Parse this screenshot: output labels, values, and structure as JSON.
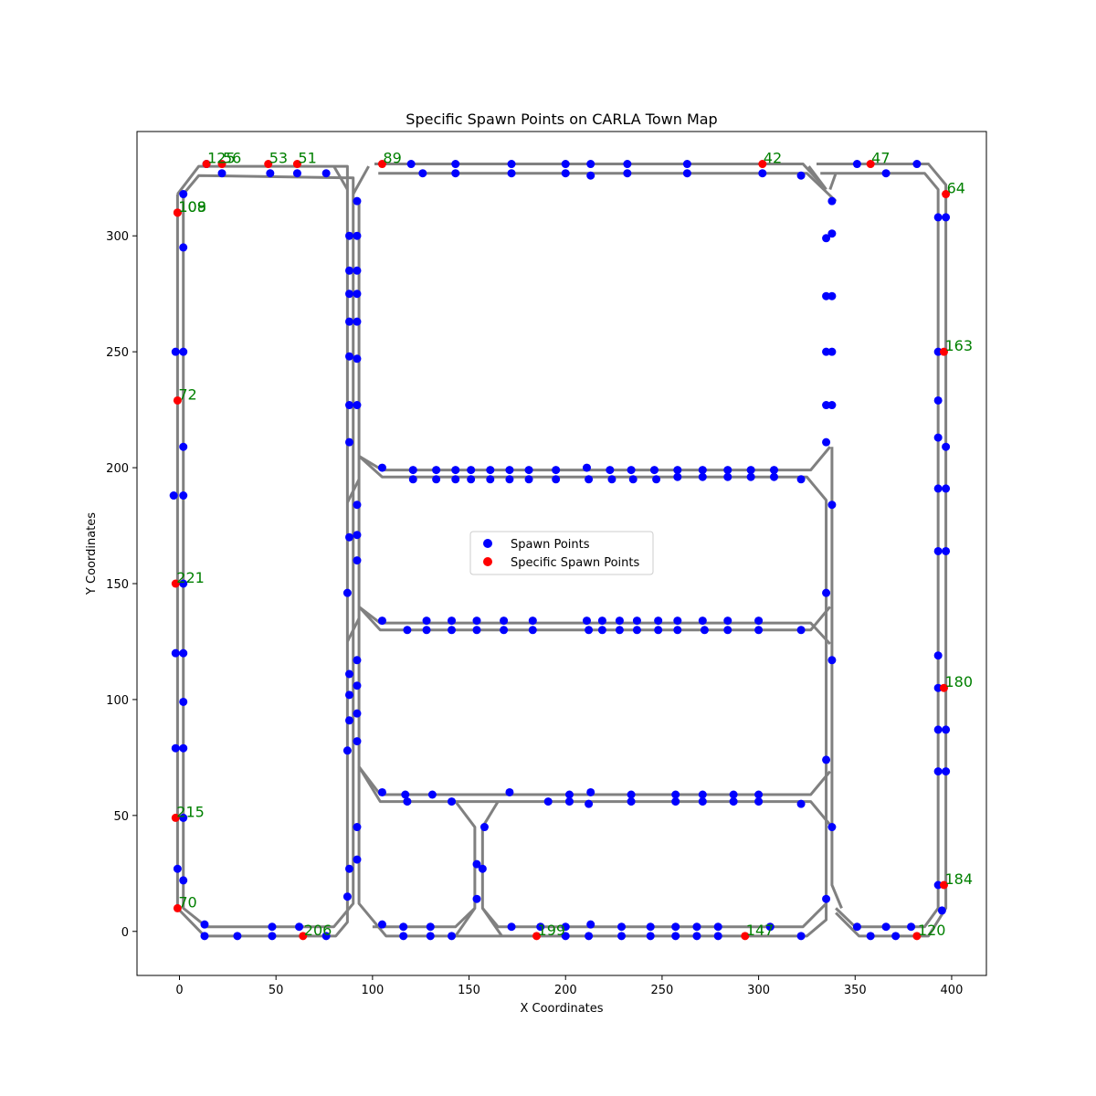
{
  "chart_data": {
    "type": "scatter",
    "title": "Specific Spawn Points on CARLA Town Map",
    "xlabel": "X Coordinates",
    "ylabel": "Y Coordinates",
    "xlim": [
      -22,
      418
    ],
    "ylim": [
      -19,
      345
    ],
    "xticks": [
      0,
      50,
      100,
      150,
      200,
      250,
      300,
      350,
      400
    ],
    "yticks": [
      0,
      50,
      100,
      150,
      200,
      250,
      300
    ],
    "grid": false,
    "legend": {
      "placement": "center",
      "entries": [
        {
          "label": "Spawn Points",
          "color": "#0000ff"
        },
        {
          "label": "Specific Spawn Points",
          "color": "#ff0000"
        }
      ]
    },
    "colors": {
      "road": "#808080",
      "spawn": "#0000ff",
      "specific": "#ff0000",
      "annotation": "#008000"
    },
    "roads": [
      [
        [
          -1,
          318
        ],
        [
          -1,
          10
        ],
        [
          13,
          -2
        ],
        [
          81,
          -2
        ],
        [
          87,
          4
        ],
        [
          87,
          195
        ],
        [
          87,
          330
        ],
        [
          82,
          330
        ],
        [
          10,
          330
        ],
        [
          -1,
          318
        ]
      ],
      [
        [
          2,
          318
        ],
        [
          2,
          10
        ],
        [
          14,
          2
        ],
        [
          80,
          2
        ],
        [
          90,
          12
        ],
        [
          90,
          325
        ],
        [
          10,
          326
        ],
        [
          2,
          318
        ]
      ],
      [
        [
          93,
          315
        ],
        [
          93,
          205
        ],
        [
          105,
          196
        ],
        [
          325,
          196
        ],
        [
          335,
          186
        ],
        [
          335,
          5
        ],
        [
          325,
          -2
        ],
        [
          107,
          -2
        ],
        [
          93,
          12
        ],
        [
          93,
          315
        ]
      ],
      [
        [
          101,
          331
        ],
        [
          323,
          331
        ],
        [
          334,
          321
        ]
      ],
      [
        [
          103,
          327
        ],
        [
          325,
          327
        ],
        [
          340,
          315
        ]
      ],
      [
        [
          330,
          331
        ],
        [
          388,
          331
        ],
        [
          397,
          322
        ],
        [
          397,
          10
        ],
        [
          388,
          -2
        ],
        [
          352,
          -2
        ],
        [
          340,
          8
        ]
      ],
      [
        [
          332,
          327
        ],
        [
          386,
          327
        ],
        [
          393,
          320
        ],
        [
          393,
          10
        ],
        [
          386,
          2
        ],
        [
          350,
          2
        ],
        [
          340,
          10
        ]
      ],
      [
        [
          93,
          205
        ],
        [
          105,
          199
        ],
        [
          327,
          199
        ],
        [
          337,
          209
        ]
      ],
      [
        [
          93,
          140
        ],
        [
          104,
          130
        ],
        [
          327,
          130
        ],
        [
          337,
          140
        ]
      ],
      [
        [
          93,
          140
        ],
        [
          104,
          133
        ],
        [
          327,
          133
        ],
        [
          337,
          124
        ]
      ],
      [
        [
          93,
          71
        ],
        [
          104,
          56
        ],
        [
          327,
          56
        ],
        [
          337,
          46
        ]
      ],
      [
        [
          93,
          71
        ],
        [
          104,
          59
        ],
        [
          327,
          59
        ],
        [
          337,
          69
        ]
      ],
      [
        [
          143,
          56
        ],
        [
          153,
          45
        ],
        [
          153,
          10
        ],
        [
          143,
          -2
        ]
      ],
      [
        [
          165,
          56
        ],
        [
          157,
          45
        ],
        [
          157,
          10
        ],
        [
          167,
          -2
        ]
      ],
      [
        [
          157,
          10
        ],
        [
          165,
          2
        ],
        [
          323,
          2
        ],
        [
          335,
          12
        ]
      ],
      [
        [
          153,
          10
        ],
        [
          143,
          2
        ],
        [
          100,
          2
        ]
      ],
      [
        [
          87,
          320
        ],
        [
          80,
          330
        ]
      ],
      [
        [
          90,
          318
        ],
        [
          98,
          330
        ]
      ],
      [
        [
          337,
          320
        ],
        [
          340,
          327
        ]
      ],
      [
        [
          335,
          320
        ],
        [
          326,
          330
        ]
      ],
      [
        [
          338,
          209
        ],
        [
          338,
          20
        ],
        [
          343,
          10
        ]
      ],
      [
        [
          87,
          185
        ],
        [
          93,
          195
        ]
      ],
      [
        [
          87,
          125
        ],
        [
          93,
          135
        ]
      ]
    ],
    "spawn_points": [
      [
        14,
        331
      ],
      [
        22,
        327
      ],
      [
        47,
        327
      ],
      [
        61,
        327
      ],
      [
        76,
        327
      ],
      [
        120,
        331
      ],
      [
        126,
        327
      ],
      [
        143,
        331
      ],
      [
        143,
        327
      ],
      [
        172,
        331
      ],
      [
        172,
        327
      ],
      [
        200,
        331
      ],
      [
        200,
        327
      ],
      [
        213,
        331
      ],
      [
        213,
        326
      ],
      [
        232,
        331
      ],
      [
        232,
        327
      ],
      [
        263,
        331
      ],
      [
        263,
        327
      ],
      [
        302,
        327
      ],
      [
        322,
        326
      ],
      [
        351,
        331
      ],
      [
        366,
        327
      ],
      [
        382,
        331
      ],
      [
        2,
        318
      ],
      [
        2,
        295
      ],
      [
        -2,
        250
      ],
      [
        2,
        250
      ],
      [
        2,
        209
      ],
      [
        -3,
        188
      ],
      [
        2,
        188
      ],
      [
        2,
        150
      ],
      [
        -2,
        120
      ],
      [
        2,
        120
      ],
      [
        2,
        99
      ],
      [
        -2,
        79
      ],
      [
        2,
        79
      ],
      [
        2,
        49
      ],
      [
        -1,
        27
      ],
      [
        2,
        22
      ],
      [
        88,
        300
      ],
      [
        92,
        300
      ],
      [
        88,
        285
      ],
      [
        92,
        285
      ],
      [
        88,
        275
      ],
      [
        92,
        275
      ],
      [
        88,
        263
      ],
      [
        92,
        263
      ],
      [
        88,
        248
      ],
      [
        92,
        247
      ],
      [
        88,
        227
      ],
      [
        92,
        227
      ],
      [
        88,
        211
      ],
      [
        92,
        184
      ],
      [
        88,
        170
      ],
      [
        92,
        171
      ],
      [
        92,
        160
      ],
      [
        87,
        146
      ],
      [
        92,
        117
      ],
      [
        88,
        111
      ],
      [
        92,
        106
      ],
      [
        88,
        102
      ],
      [
        92,
        94
      ],
      [
        88,
        91
      ],
      [
        92,
        82
      ],
      [
        87,
        78
      ],
      [
        92,
        45
      ],
      [
        92,
        31
      ],
      [
        88,
        27
      ],
      [
        87,
        15
      ],
      [
        92,
        315
      ],
      [
        105,
        200
      ],
      [
        121,
        199
      ],
      [
        121,
        195
      ],
      [
        133,
        199
      ],
      [
        133,
        195
      ],
      [
        143,
        199
      ],
      [
        143,
        195
      ],
      [
        151,
        199
      ],
      [
        151,
        195
      ],
      [
        161,
        199
      ],
      [
        161,
        195
      ],
      [
        171,
        199
      ],
      [
        171,
        195
      ],
      [
        181,
        199
      ],
      [
        181,
        195
      ],
      [
        195,
        199
      ],
      [
        195,
        195
      ],
      [
        211,
        200
      ],
      [
        212,
        195
      ],
      [
        223,
        199
      ],
      [
        224,
        195
      ],
      [
        234,
        199
      ],
      [
        235,
        195
      ],
      [
        246,
        199
      ],
      [
        247,
        195
      ],
      [
        258,
        199
      ],
      [
        258,
        196
      ],
      [
        271,
        199
      ],
      [
        271,
        196
      ],
      [
        284,
        199
      ],
      [
        284,
        196
      ],
      [
        296,
        199
      ],
      [
        296,
        196
      ],
      [
        308,
        199
      ],
      [
        308,
        196
      ],
      [
        322,
        195
      ],
      [
        105,
        134
      ],
      [
        118,
        130
      ],
      [
        128,
        134
      ],
      [
        128,
        130
      ],
      [
        141,
        134
      ],
      [
        141,
        130
      ],
      [
        154,
        134
      ],
      [
        154,
        130
      ],
      [
        168,
        134
      ],
      [
        168,
        130
      ],
      [
        183,
        134
      ],
      [
        183,
        130
      ],
      [
        211,
        134
      ],
      [
        212,
        130
      ],
      [
        219,
        134
      ],
      [
        219,
        130
      ],
      [
        228,
        134
      ],
      [
        228,
        130
      ],
      [
        237,
        134
      ],
      [
        237,
        130
      ],
      [
        248,
        134
      ],
      [
        248,
        130
      ],
      [
        258,
        134
      ],
      [
        258,
        130
      ],
      [
        271,
        134
      ],
      [
        272,
        130
      ],
      [
        284,
        134
      ],
      [
        284,
        130
      ],
      [
        300,
        134
      ],
      [
        300,
        130
      ],
      [
        322,
        130
      ],
      [
        105,
        60
      ],
      [
        117,
        59
      ],
      [
        118,
        56
      ],
      [
        131,
        59
      ],
      [
        141,
        56
      ],
      [
        171,
        60
      ],
      [
        191,
        56
      ],
      [
        202,
        59
      ],
      [
        202,
        56
      ],
      [
        213,
        60
      ],
      [
        212,
        55
      ],
      [
        234,
        59
      ],
      [
        234,
        56
      ],
      [
        257,
        59
      ],
      [
        257,
        56
      ],
      [
        271,
        59
      ],
      [
        271,
        56
      ],
      [
        287,
        59
      ],
      [
        287,
        56
      ],
      [
        300,
        59
      ],
      [
        300,
        56
      ],
      [
        322,
        55
      ],
      [
        158,
        45
      ],
      [
        154,
        29
      ],
      [
        157,
        27
      ],
      [
        154,
        14
      ],
      [
        335,
        299
      ],
      [
        338,
        301
      ],
      [
        335,
        274
      ],
      [
        338,
        274
      ],
      [
        335,
        250
      ],
      [
        338,
        250
      ],
      [
        335,
        227
      ],
      [
        338,
        227
      ],
      [
        335,
        211
      ],
      [
        338,
        184
      ],
      [
        335,
        146
      ],
      [
        338,
        117
      ],
      [
        335,
        74
      ],
      [
        338,
        45
      ],
      [
        335,
        14
      ],
      [
        338,
        315
      ],
      [
        393,
        308
      ],
      [
        397,
        308
      ],
      [
        393,
        250
      ],
      [
        393,
        229
      ],
      [
        393,
        213
      ],
      [
        397,
        209
      ],
      [
        393,
        191
      ],
      [
        397,
        191
      ],
      [
        393,
        164
      ],
      [
        397,
        164
      ],
      [
        393,
        119
      ],
      [
        393,
        105
      ],
      [
        393,
        87
      ],
      [
        397,
        87
      ],
      [
        393,
        69
      ],
      [
        397,
        69
      ],
      [
        393,
        20
      ],
      [
        395,
        9
      ],
      [
        13,
        3
      ],
      [
        13,
        -2
      ],
      [
        30,
        -2
      ],
      [
        48,
        2
      ],
      [
        48,
        -2
      ],
      [
        62,
        2
      ],
      [
        76,
        -2
      ],
      [
        105,
        3
      ],
      [
        116,
        2
      ],
      [
        116,
        -2
      ],
      [
        130,
        2
      ],
      [
        130,
        -2
      ],
      [
        141,
        -2
      ],
      [
        172,
        2
      ],
      [
        187,
        2
      ],
      [
        200,
        2
      ],
      [
        200,
        -2
      ],
      [
        213,
        3
      ],
      [
        212,
        -2
      ],
      [
        229,
        2
      ],
      [
        229,
        -2
      ],
      [
        244,
        2
      ],
      [
        244,
        -2
      ],
      [
        257,
        2
      ],
      [
        257,
        -2
      ],
      [
        268,
        2
      ],
      [
        268,
        -2
      ],
      [
        279,
        2
      ],
      [
        279,
        -2
      ],
      [
        306,
        2
      ],
      [
        322,
        -2
      ],
      [
        351,
        2
      ],
      [
        358,
        -2
      ],
      [
        366,
        2
      ],
      [
        371,
        -2
      ],
      [
        379,
        2
      ]
    ],
    "specific_points": [
      {
        "label": "125",
        "x": 14,
        "y": 331
      },
      {
        "label": "56",
        "x": 22,
        "y": 331
      },
      {
        "label": "53",
        "x": 46,
        "y": 331
      },
      {
        "label": "51",
        "x": 61,
        "y": 331
      },
      {
        "label": "89",
        "x": 105,
        "y": 331
      },
      {
        "label": "42",
        "x": 302,
        "y": 331
      },
      {
        "label": "47",
        "x": 358,
        "y": 331
      },
      {
        "label": "64",
        "x": 397,
        "y": 318
      },
      {
        "label": "108",
        "x": -1,
        "y": 310
      },
      {
        "label": "109",
        "x": -1,
        "y": 310
      },
      {
        "label": "163",
        "x": 396,
        "y": 250
      },
      {
        "label": "72",
        "x": -1,
        "y": 229
      },
      {
        "label": "221",
        "x": -2,
        "y": 150
      },
      {
        "label": "180",
        "x": 396,
        "y": 105
      },
      {
        "label": "215",
        "x": -2,
        "y": 49
      },
      {
        "label": "184",
        "x": 396,
        "y": 20
      },
      {
        "label": "70",
        "x": -1,
        "y": 10
      },
      {
        "label": "206",
        "x": 64,
        "y": -2
      },
      {
        "label": "199",
        "x": 185,
        "y": -2
      },
      {
        "label": "147",
        "x": 293,
        "y": -2
      },
      {
        "label": "120",
        "x": 382,
        "y": -2
      }
    ]
  }
}
